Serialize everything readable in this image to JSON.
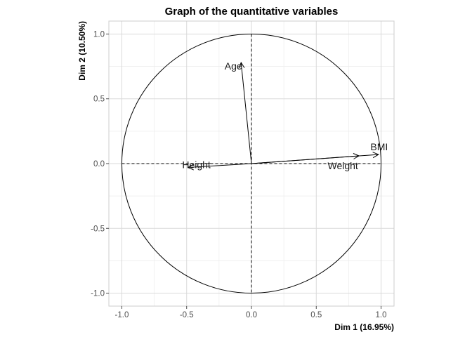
{
  "chart_data": {
    "type": "scatter",
    "title": "Graph of the quantitative variables",
    "xlabel": "Dim 1 (16.95%)",
    "ylabel": "Dim 2 (10.50%)",
    "xlim": [
      -1.1,
      1.1
    ],
    "ylim": [
      -1.1,
      1.1
    ],
    "xticks": [
      -1.0,
      -0.5,
      0.0,
      0.5,
      1.0
    ],
    "yticks": [
      -1.0,
      -0.5,
      0.0,
      0.5,
      1.0
    ],
    "xtick_labels": [
      "-1.0",
      "-0.5",
      "0.0",
      "0.5",
      "1.0"
    ],
    "ytick_labels": [
      "-1.0",
      "-0.5",
      "0.0",
      "0.5",
      "1.0"
    ],
    "grid": true,
    "unit_circle": true,
    "variables": [
      {
        "name": "Age",
        "x": -0.08,
        "y": 0.78
      },
      {
        "name": "Height",
        "x": -0.49,
        "y": -0.03
      },
      {
        "name": "Weight",
        "x": 0.83,
        "y": 0.06
      },
      {
        "name": "BMI",
        "x": 0.98,
        "y": 0.07
      }
    ]
  }
}
